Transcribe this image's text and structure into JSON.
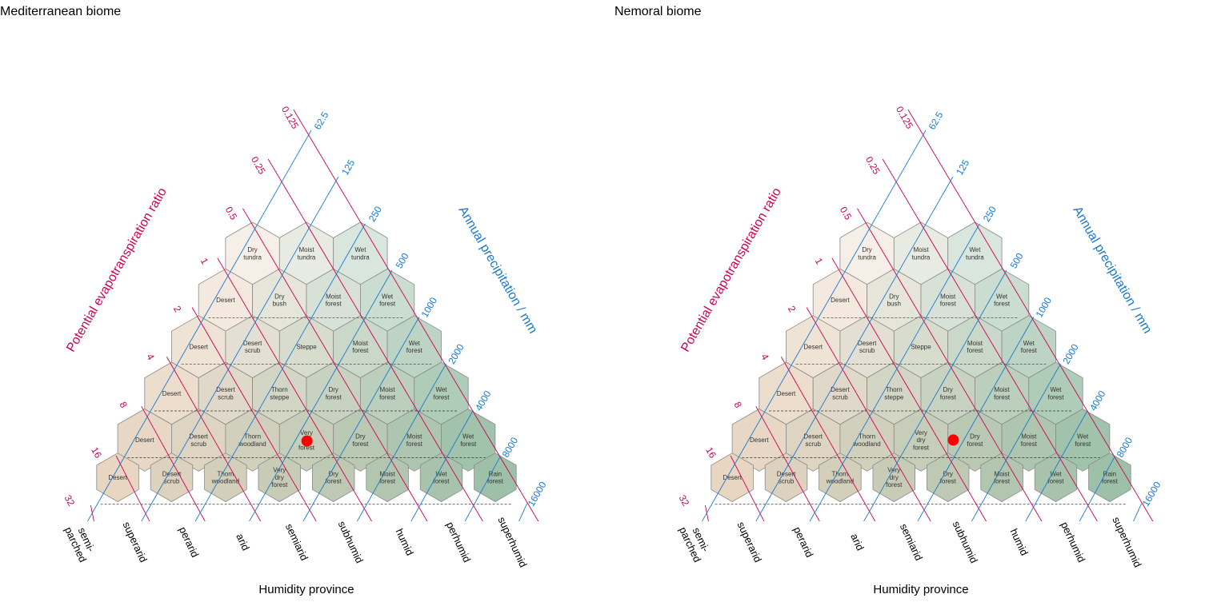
{
  "shared": {
    "axis_left_title": "Potential evapotranspiration ratio",
    "axis_right_title": "Annual precipitation / mm",
    "axis_bottom_title": "Humidity province",
    "pet_ticks": [
      "0.125",
      "0.25",
      "0.5",
      "1",
      "2",
      "4",
      "8",
      "16",
      "32"
    ],
    "precip_ticks": [
      "62.5",
      "125",
      "250",
      "500",
      "1000",
      "2000",
      "4000",
      "8000",
      "16000"
    ],
    "humidity_provinces": [
      "semi-\nparched",
      "superarid",
      "perarid",
      "arid",
      "semiarid",
      "subhumid",
      "humid",
      "perhumid",
      "superhumid"
    ],
    "zones": [
      [
        "Dry\ntundra",
        "Moist\ntundra",
        "Wet\ntundra"
      ],
      [
        "Desert",
        "Dry\nbush",
        "Moist\nforest",
        "Wet\nforest"
      ],
      [
        "Desert",
        "Desert\nscrub",
        "Steppe",
        "Moist\nforest",
        "Wet\nforest"
      ],
      [
        "Desert",
        "Desert\nscrub",
        "Thorn\nsteppe",
        "Dry\nforest",
        "Moist\nforest",
        "Wet\nforest"
      ],
      [
        "Desert",
        "Desert\nscrub",
        "Thorn\nwoodland",
        "Very\ndry\nforest",
        "Dry\nforest",
        "Moist\nforest",
        "Wet\nforest"
      ],
      [
        "Desert",
        "Desert\nscrub",
        "Thorn\nwoodland",
        "Very\ndry\nforest",
        "Dry\nforest",
        "Moist\nforest",
        "Wet\nforest",
        "Rain\nforest"
      ]
    ],
    "colors": {
      "pet_lines": "#cc0055",
      "precip_lines": "#1b78d0",
      "point": "#ff0000",
      "hex_border": "#8a8a8a",
      "dry_fill": "#e8d5c2",
      "wet_fill": "#9dc0a8",
      "cold_fill": "#ffffff"
    }
  },
  "panels": [
    {
      "title": "Mediterranean biome",
      "point": {
        "log2_pet": 3.25,
        "log2_precip": 3.27
      }
    },
    {
      "title": "Nemoral biome",
      "point": {
        "log2_pet": 2.65,
        "log2_precip": 3.85
      }
    }
  ]
}
